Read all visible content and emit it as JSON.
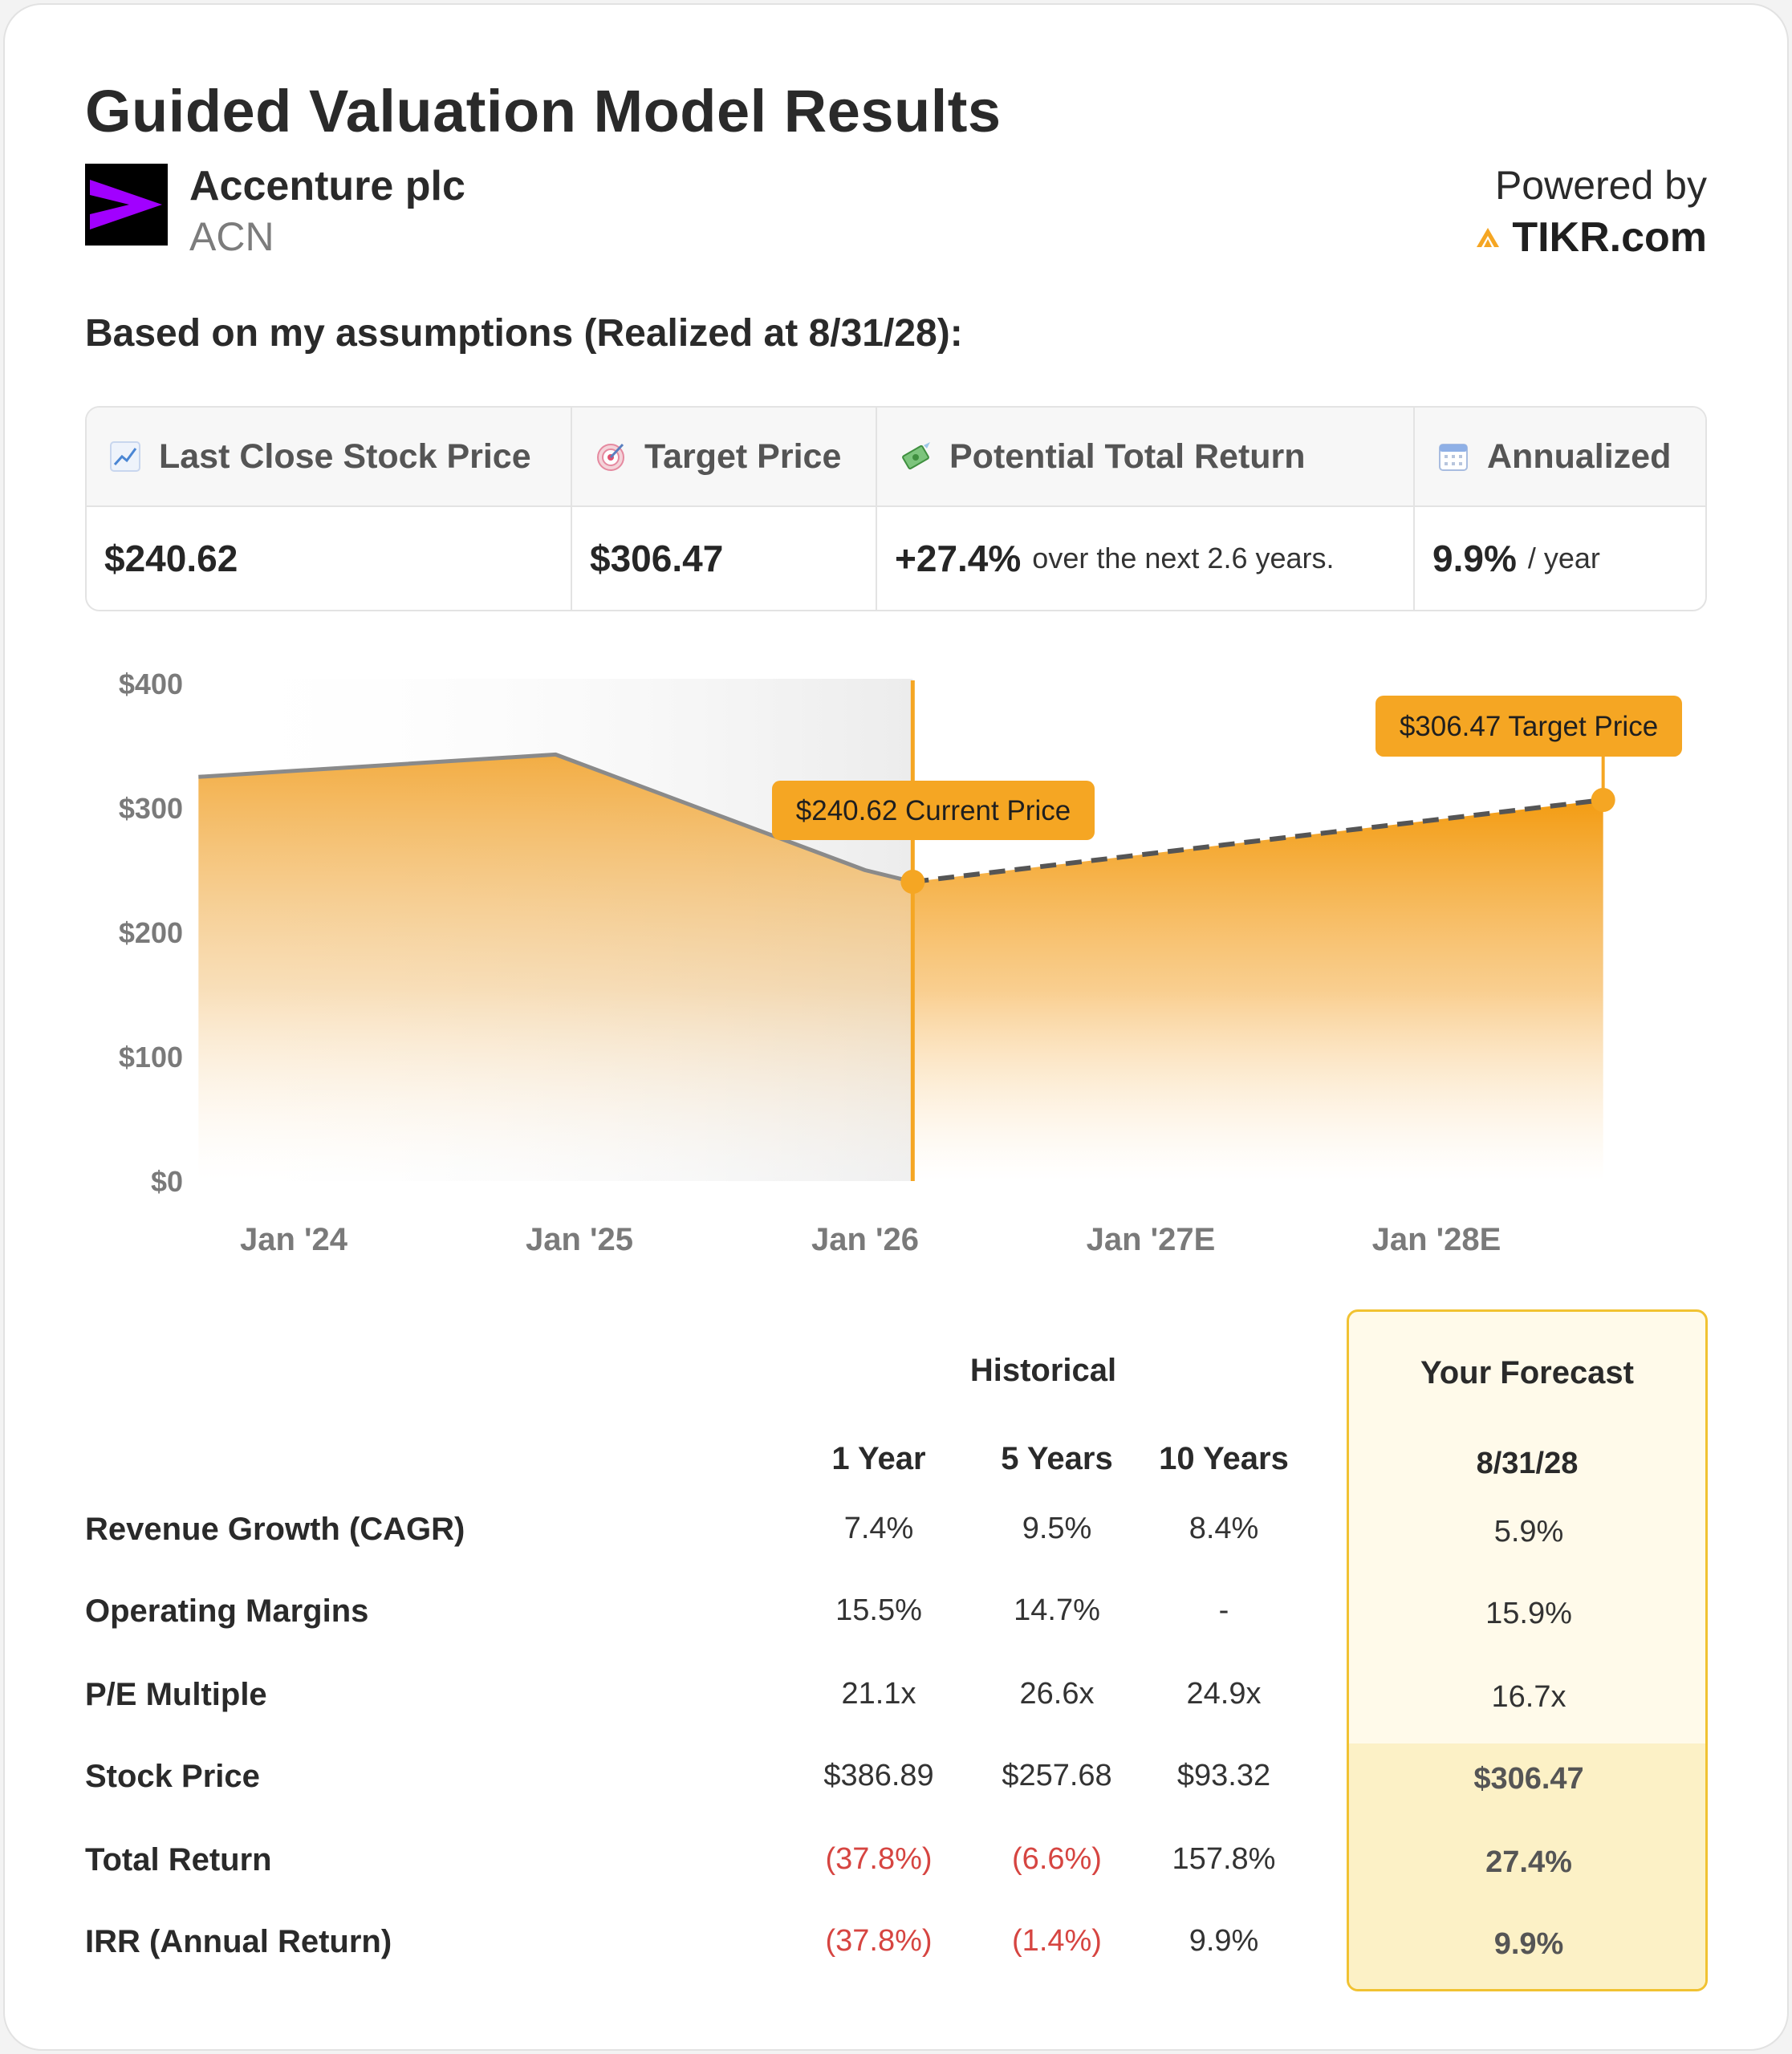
{
  "header": {
    "title": "Guided Valuation Model Results",
    "company_name": "Accenture plc",
    "ticker": "ACN",
    "powered_by": "Powered by",
    "brand": "TIKR.com"
  },
  "assumptions_text": "Based on my assumptions (Realized at 8/31/28):",
  "metrics": [
    {
      "icon": "chart-increasing-icon",
      "label": "Last Close Stock Price",
      "value": "$240.62",
      "suffix": ""
    },
    {
      "icon": "target-icon",
      "label": "Target Price",
      "value": "$306.47",
      "suffix": ""
    },
    {
      "icon": "money-wings-icon",
      "label": "Potential Total Return",
      "value": "+27.4%",
      "suffix": "over the next 2.6 years."
    },
    {
      "icon": "calendar-icon",
      "label": "Annualized",
      "value": "9.9%",
      "suffix": "/ year"
    }
  ],
  "chart_data": {
    "type": "area",
    "y_ticks": [
      "$400",
      "$300",
      "$200",
      "$100",
      "$0"
    ],
    "ylim": [
      0,
      400
    ],
    "x_ticks": [
      "Jan '24",
      "Jan '25",
      "Jan '26",
      "Jan '27E",
      "Jan '28E"
    ],
    "series": [
      {
        "type": "historical",
        "points": [
          {
            "x": "2023-09",
            "y": 325
          },
          {
            "x": "2024-12",
            "y": 343
          },
          {
            "x": "2026-01",
            "y": 250
          },
          {
            "x": "2026-03",
            "y": 240.62
          }
        ]
      },
      {
        "type": "forecast",
        "points": [
          {
            "x": "2026-03",
            "y": 240.62
          },
          {
            "x": "2028-08",
            "y": 306.47
          }
        ]
      }
    ],
    "annotations": [
      {
        "text": "$240.62 Current Price"
      },
      {
        "text": "$306.47 Target Price"
      }
    ],
    "colors": {
      "accent": "#f5a623",
      "historical_line": "#8a8a8a",
      "forecast_line": "#555555"
    }
  },
  "table": {
    "historical_label": "Historical",
    "forecast_label": "Your Forecast",
    "forecast_date": "8/31/28",
    "columns": [
      "1 Year",
      "5 Years",
      "10 Years"
    ],
    "rows": [
      {
        "label": "Revenue Growth (CAGR)",
        "values": [
          "7.4%",
          "9.5%",
          "8.4%"
        ],
        "forecast": "5.9%"
      },
      {
        "label": "Operating Margins",
        "values": [
          "15.5%",
          "14.7%",
          "-"
        ],
        "forecast": "15.9%"
      },
      {
        "label": "P/E Multiple",
        "values": [
          "21.1x",
          "26.6x",
          "24.9x"
        ],
        "forecast": "16.7x"
      },
      {
        "label": "Stock Price",
        "values": [
          "$386.89",
          "$257.68",
          "$93.32"
        ],
        "forecast": "$306.47"
      },
      {
        "label": "Total Return",
        "values": [
          "(37.8%)",
          "(6.6%)",
          "157.8%"
        ],
        "forecast": "27.4%"
      },
      {
        "label": "IRR (Annual Return)",
        "values": [
          "(37.8%)",
          "(1.4%)",
          "9.9%"
        ],
        "forecast": "9.9%"
      }
    ]
  }
}
